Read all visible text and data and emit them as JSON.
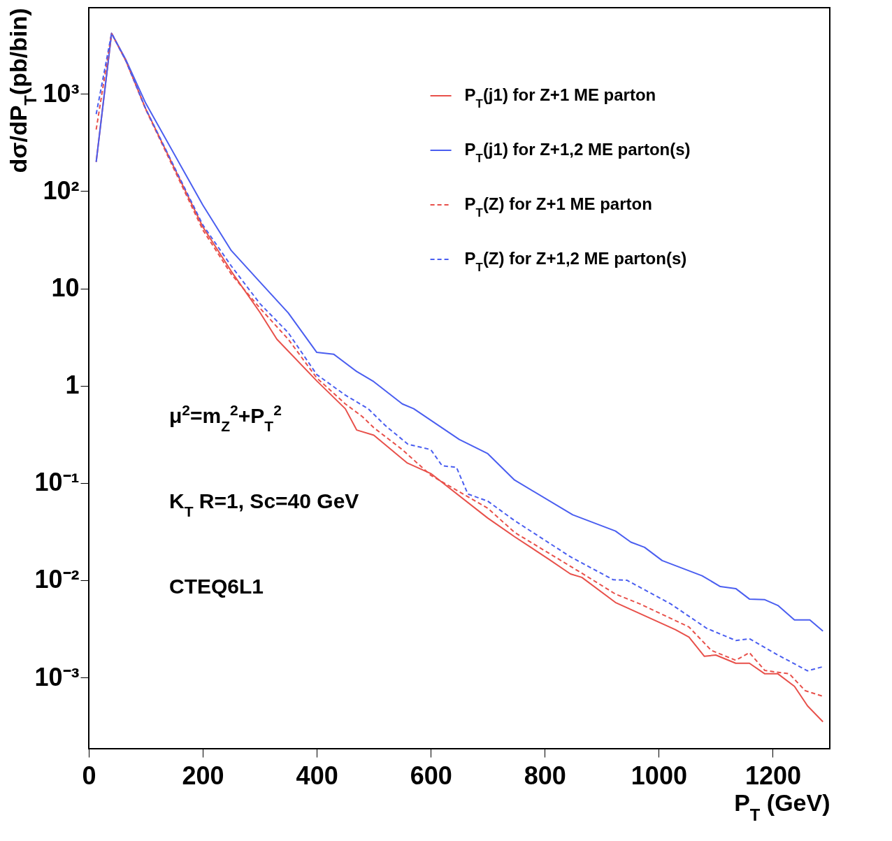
{
  "chart_data": {
    "type": "line",
    "xlabel": "P$_{T}$ (GeV)",
    "ylabel": "dσ/dP$_{T}$(pb/bin)",
    "log": "y",
    "xlim": [
      0,
      1300
    ],
    "ylim": [
      0.000185,
      7700
    ],
    "xticks": [
      0,
      200,
      400,
      600,
      800,
      1000,
      1200
    ],
    "yticks": [
      {
        "value": 0.001,
        "label": "10⁻³"
      },
      {
        "value": 0.01,
        "label": "10⁻²"
      },
      {
        "value": 0.1,
        "label": "10⁻¹"
      },
      1,
      10,
      {
        "value": 100,
        "label": "10²"
      },
      {
        "value": 1000,
        "label": "10³"
      }
    ],
    "grid": false,
    "legend": "top right",
    "marker": "none",
    "annotations": [
      "μ$^{2}$=m$_{Z}$$^{2}$+P$_{T}$$^{2}$",
      "K$_{T}$ R=1, Sc=40 GeV",
      "CTEQ6L1"
    ],
    "series": [
      {
        "name": "P$_{T}$(j1) for Z+1 ME parton",
        "color": "#e8504a",
        "line_style": "solid",
        "x": [
          13,
          40,
          65,
          100,
          200,
          250,
          300,
          330,
          400,
          450,
          470,
          500,
          559,
          600,
          700,
          747,
          806,
          845,
          865,
          924,
          1029,
          1053,
          1080,
          1100,
          1135,
          1159,
          1186,
          1209,
          1238,
          1261,
          1288
        ],
        "values": [
          200,
          4200,
          2200,
          700,
          43,
          15,
          5.7,
          3.0,
          1.12,
          0.58,
          0.35,
          0.31,
          0.16,
          0.125,
          0.0435,
          0.028,
          0.0166,
          0.0116,
          0.0107,
          0.0059,
          0.0031,
          0.0026,
          0.00165,
          0.0017,
          0.0014,
          0.0014,
          0.00109,
          0.00109,
          0.00081,
          0.00051,
          0.00035
        ]
      },
      {
        "name": "P$_{T}$(j1) for Z+1,2 ME parton(s)",
        "color": "#4a5ef0",
        "line_style": "solid",
        "x": [
          13,
          40,
          65,
          100,
          200,
          250,
          300,
          350,
          400,
          430,
          470,
          500,
          550,
          570,
          650,
          700,
          747,
          849,
          924,
          951,
          975,
          1006,
          1076,
          1108,
          1135,
          1159,
          1186,
          1209,
          1238,
          1265,
          1288
        ],
        "values": [
          200,
          4200,
          2250,
          800,
          72,
          24.5,
          11.7,
          5.6,
          2.2,
          2.1,
          1.4,
          1.1,
          0.65,
          0.58,
          0.28,
          0.2,
          0.107,
          0.047,
          0.032,
          0.0246,
          0.0218,
          0.0159,
          0.0111,
          0.0086,
          0.0082,
          0.0064,
          0.0063,
          0.0055,
          0.0039,
          0.0039,
          0.003
        ]
      },
      {
        "name": "P$_{T}$(Z) for Z+1 ME parton",
        "color": "#e8504a",
        "line_style": "dashed",
        "x": [
          13,
          40,
          65,
          100,
          200,
          250,
          300,
          350,
          400,
          450,
          480,
          500,
          550,
          600,
          700,
          747,
          865,
          924,
          967,
          1053,
          1092,
          1135,
          1159,
          1186,
          1229,
          1257,
          1288
        ],
        "values": [
          430,
          4200,
          2200,
          690,
          40,
          14,
          6.3,
          3.0,
          1.2,
          0.65,
          0.48,
          0.37,
          0.22,
          0.12,
          0.055,
          0.031,
          0.0118,
          0.0072,
          0.0057,
          0.0033,
          0.0019,
          0.0015,
          0.0018,
          0.00118,
          0.00109,
          0.00073,
          0.00064
        ]
      },
      {
        "name": "P$_{T}$(Z) for Z+1,2 ME parton(s)",
        "color": "#4a5ef0",
        "line_style": "dashed",
        "x": [
          13,
          40,
          65,
          100,
          200,
          250,
          300,
          350,
          400,
          450,
          490,
          520,
          560,
          600,
          620,
          645,
          665,
          700,
          747,
          845,
          920,
          944,
          1021,
          1084,
          1135,
          1159,
          1209,
          1261,
          1288
        ],
        "values": [
          620,
          4200,
          2200,
          700,
          45,
          17,
          7.0,
          3.5,
          1.3,
          0.8,
          0.58,
          0.39,
          0.25,
          0.22,
          0.15,
          0.145,
          0.077,
          0.065,
          0.041,
          0.0174,
          0.0101,
          0.01,
          0.0057,
          0.0032,
          0.0024,
          0.0025,
          0.0017,
          0.00117,
          0.00129
        ]
      }
    ]
  }
}
